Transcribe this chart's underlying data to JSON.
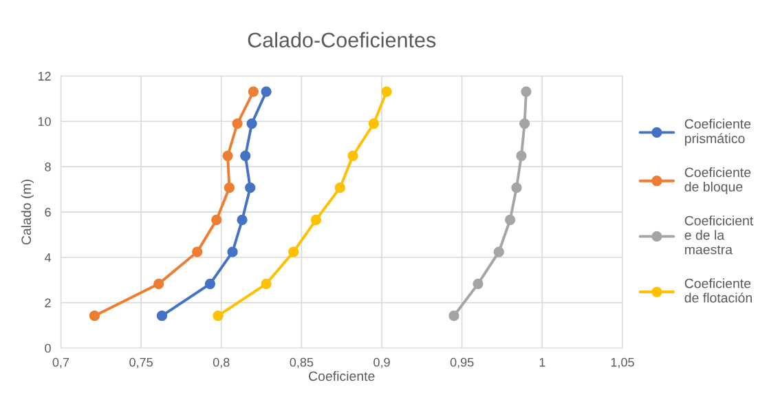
{
  "chart_data": {
    "type": "line",
    "title": "Calado-Coeficientes",
    "xlabel": "Coeficiente",
    "ylabel": "Calado (m)",
    "xlim": [
      0.7,
      1.05
    ],
    "xticks": [
      {
        "value": 0.7,
        "label": "0,7"
      },
      {
        "value": 0.75,
        "label": "0,75"
      },
      {
        "value": 0.8,
        "label": "0,8"
      },
      {
        "value": 0.85,
        "label": "0,85"
      },
      {
        "value": 0.9,
        "label": "0,9"
      },
      {
        "value": 0.95,
        "label": "0,95"
      },
      {
        "value": 1,
        "label": "1"
      },
      {
        "value": 1.05,
        "label": "1,05"
      }
    ],
    "ylim": [
      0,
      12
    ],
    "yticks": [
      0,
      2,
      4,
      6,
      8,
      10,
      12
    ],
    "grid": true,
    "legend": "right",
    "marker": "circle",
    "line_style": "solid",
    "series": [
      {
        "name": "Coeficiente\nprismático",
        "color": "#4472c4",
        "x": [
          0.763,
          0.793,
          0.807,
          0.813,
          0.818,
          0.815,
          0.819,
          0.828
        ],
        "values": [
          1.42,
          2.83,
          4.24,
          5.65,
          7.07,
          8.48,
          9.9,
          11.31
        ]
      },
      {
        "name": "Coeficiente\nde bloque",
        "color": "#ed7d31",
        "x": [
          0.721,
          0.761,
          0.785,
          0.797,
          0.805,
          0.804,
          0.81,
          0.82
        ],
        "values": [
          1.42,
          2.83,
          4.24,
          5.65,
          7.07,
          8.48,
          9.9,
          11.31
        ]
      },
      {
        "name": "Coeficicient\ne de la\nmaestra",
        "color": "#a5a5a5",
        "x": [
          0.945,
          0.96,
          0.973,
          0.98,
          0.984,
          0.987,
          0.989,
          0.99
        ],
        "values": [
          1.42,
          2.83,
          4.24,
          5.65,
          7.07,
          8.48,
          9.9,
          11.31
        ]
      },
      {
        "name": "Coeficiente\nde flotación",
        "color": "#ffc000",
        "x": [
          0.798,
          0.828,
          0.845,
          0.859,
          0.874,
          0.882,
          0.895,
          0.903
        ],
        "values": [
          1.42,
          2.83,
          4.24,
          5.65,
          7.07,
          8.48,
          9.9,
          11.31
        ]
      }
    ]
  }
}
